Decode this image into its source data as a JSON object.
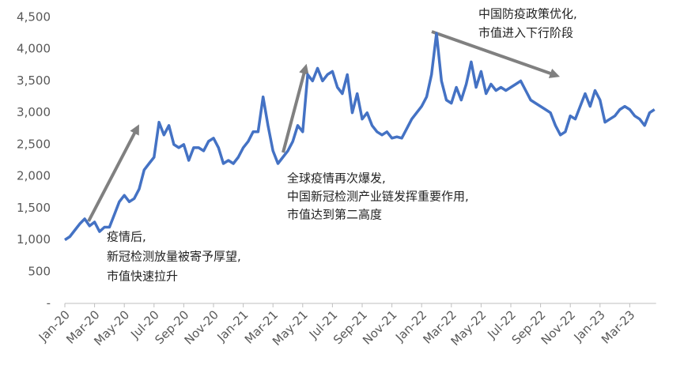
{
  "chart_data": {
    "type": "line",
    "categories": [
      "Jan-20",
      null,
      null,
      null,
      null,
      null,
      "Mar-20",
      null,
      null,
      null,
      null,
      null,
      "May-20",
      null,
      null,
      null,
      null,
      null,
      "Jul-20",
      null,
      null,
      null,
      null,
      null,
      "Sep-20",
      null,
      null,
      null,
      null,
      null,
      "Nov-20",
      null,
      null,
      null,
      null,
      null,
      "Jan-21",
      null,
      null,
      null,
      null,
      null,
      "Mar-21",
      null,
      null,
      null,
      null,
      null,
      "May-21",
      null,
      null,
      null,
      null,
      null,
      "Jul-21",
      null,
      null,
      null,
      null,
      null,
      "Sep-21",
      null,
      null,
      null,
      null,
      null,
      "Nov-21",
      null,
      null,
      null,
      null,
      null,
      "Jan-22",
      null,
      null,
      null,
      null,
      null,
      "Mar-22",
      null,
      null,
      null,
      null,
      null,
      "May-22",
      null,
      null,
      null,
      null,
      null,
      "Jul-22",
      null,
      null,
      null,
      null,
      null,
      "Sep-22",
      null,
      null,
      null,
      null,
      null,
      "Nov-22",
      null,
      null,
      null,
      null,
      null,
      "Jan-23",
      null,
      null,
      null,
      null,
      null,
      "Mar-23",
      null,
      null,
      null,
      null,
      null
    ],
    "series": [
      {
        "color": "#4472c4",
        "values": [
          1000,
          1050,
          1150,
          1250,
          1330,
          1220,
          1280,
          1130,
          1200,
          1200,
          1400,
          1600,
          1700,
          1600,
          1650,
          1800,
          2100,
          2200,
          2300,
          2850,
          2650,
          2800,
          2500,
          2450,
          2500,
          2250,
          2450,
          2450,
          2400,
          2550,
          2600,
          2450,
          2200,
          2250,
          2200,
          2300,
          2450,
          2550,
          2700,
          2700,
          3250,
          2800,
          2400,
          2200,
          2300,
          2400,
          2550,
          2800,
          2700,
          3600,
          3500,
          3700,
          3500,
          3600,
          3650,
          3400,
          3300,
          3600,
          3000,
          3300,
          2900,
          3000,
          2800,
          2700,
          2650,
          2700,
          2600,
          2620,
          2600,
          2750,
          2900,
          3000,
          3100,
          3250,
          3600,
          4250,
          3500,
          3200,
          3150,
          3400,
          3200,
          3450,
          3800,
          3400,
          3650,
          3300,
          3450,
          3350,
          3400,
          3350,
          3400,
          3450,
          3500,
          3350,
          3200,
          3150,
          3100,
          3050,
          3000,
          2800,
          2650,
          2700,
          2950,
          2900,
          3100,
          3300,
          3100,
          3350,
          3200,
          2850,
          2900,
          2950,
          3050,
          3100,
          3050,
          2950,
          2900,
          2800,
          3000,
          3050
        ]
      }
    ],
    "ylim": [
      0,
      4500
    ],
    "yticks": [
      {
        "value": 0,
        "label": "-"
      },
      500,
      {
        "value": 1000,
        "label": "1,000"
      },
      {
        "value": 1500,
        "label": "1,500"
      },
      {
        "value": 2000,
        "label": "2,000"
      },
      {
        "value": 2500,
        "label": "2,500"
      },
      {
        "value": 3000,
        "label": "3,000"
      },
      {
        "value": 3500,
        "label": "3,500"
      },
      {
        "value": 4000,
        "label": "4,000"
      },
      {
        "value": 4500,
        "label": "4,500"
      }
    ],
    "grid": false,
    "annotations": [
      [
        "疫情后,",
        "新冠检测放量被寄予厚望,",
        "市值快速拉升"
      ],
      [
        "全球疫情再次爆发,",
        "中国新冠检测产业链发挥重要作用,",
        "市值达到第二高度"
      ],
      [
        "中国防疫政策优化,",
        "市值进入下行阶段"
      ]
    ]
  }
}
